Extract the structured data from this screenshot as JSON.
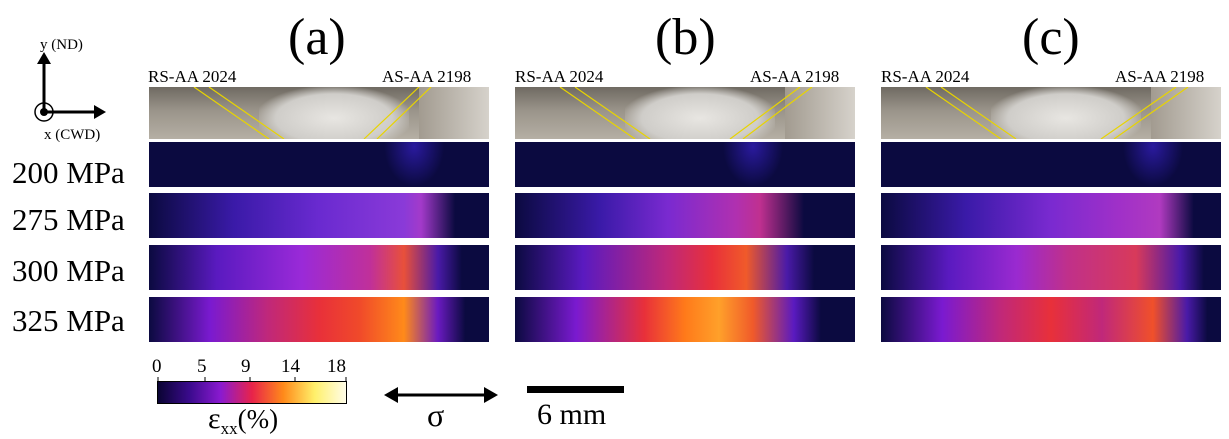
{
  "panels": [
    {
      "letter": "(a)",
      "left_label": "RS-AA 2024",
      "right_label": "AS-AA 2198"
    },
    {
      "letter": "(b)",
      "left_label": "RS-AA 2024",
      "right_label": "AS-AA 2198"
    },
    {
      "letter": "(c)",
      "left_label": "RS-AA 2024",
      "right_label": "AS-AA 2198"
    }
  ],
  "stress_levels": [
    "200 MPa",
    "275 MPa",
    "300 MPa",
    "325 MPa"
  ],
  "axes": {
    "y_label": "y (ND)",
    "x_label": "x (CWD)"
  },
  "colorbar": {
    "ticks": [
      "0",
      "5",
      "9",
      "14",
      "18"
    ],
    "label": "ε",
    "label_sub": "xx",
    "label_unit": "(%)",
    "colors": [
      "#0a0433",
      "#3a0a8c",
      "#8a1ad0",
      "#e8234a",
      "#ff8a1a",
      "#fff06a",
      "#fffde8"
    ]
  },
  "sigma": {
    "symbol": "σ"
  },
  "scale_bar": {
    "label": "6 mm"
  }
}
